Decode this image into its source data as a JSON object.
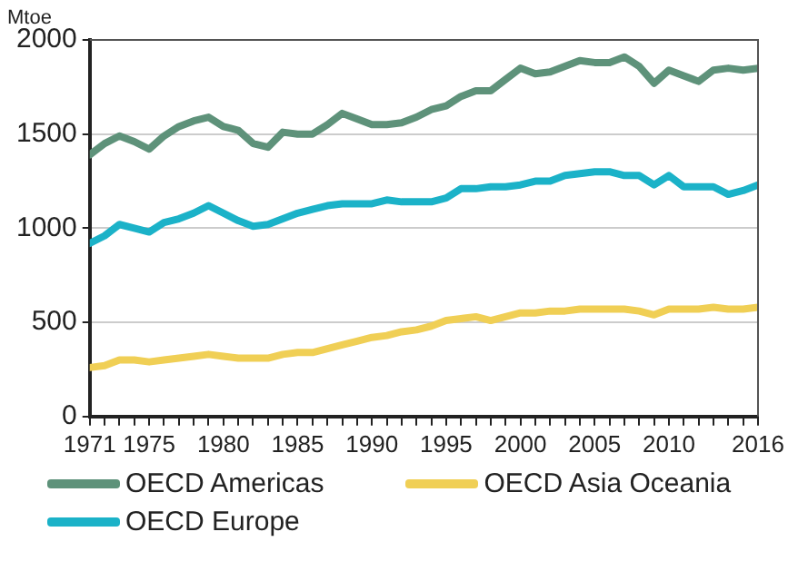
{
  "chart_data": {
    "type": "line",
    "ylabel": "Mtoe",
    "x": [
      1971,
      1972,
      1973,
      1974,
      1975,
      1976,
      1977,
      1978,
      1979,
      1980,
      1981,
      1982,
      1983,
      1984,
      1985,
      1986,
      1987,
      1988,
      1989,
      1990,
      1991,
      1992,
      1993,
      1994,
      1995,
      1996,
      1997,
      1998,
      1999,
      2000,
      2001,
      2002,
      2003,
      2004,
      2005,
      2006,
      2007,
      2008,
      2009,
      2010,
      2011,
      2012,
      2013,
      2014,
      2015,
      2016
    ],
    "series": [
      {
        "name": "OECD Americas",
        "color": "#5e927a",
        "values": [
          1390,
          1450,
          1490,
          1460,
          1420,
          1490,
          1540,
          1570,
          1590,
          1540,
          1520,
          1450,
          1430,
          1510,
          1500,
          1500,
          1550,
          1610,
          1580,
          1550,
          1550,
          1560,
          1590,
          1630,
          1650,
          1700,
          1730,
          1730,
          1790,
          1850,
          1820,
          1830,
          1860,
          1890,
          1880,
          1880,
          1910,
          1860,
          1770,
          1840,
          1810,
          1780,
          1840,
          1850,
          1840,
          1850
        ]
      },
      {
        "name": "OECD Europe",
        "color": "#1bb2c8",
        "values": [
          920,
          960,
          1020,
          1000,
          980,
          1030,
          1050,
          1080,
          1120,
          1080,
          1040,
          1010,
          1020,
          1050,
          1080,
          1100,
          1120,
          1130,
          1130,
          1130,
          1150,
          1140,
          1140,
          1140,
          1160,
          1210,
          1210,
          1220,
          1220,
          1230,
          1250,
          1250,
          1280,
          1290,
          1300,
          1300,
          1280,
          1280,
          1230,
          1280,
          1220,
          1220,
          1220,
          1180,
          1200,
          1230
        ]
      },
      {
        "name": "OECD Asia Oceania",
        "color": "#f0cf55",
        "values": [
          260,
          270,
          300,
          300,
          290,
          300,
          310,
          320,
          330,
          320,
          310,
          310,
          310,
          330,
          340,
          340,
          360,
          380,
          400,
          420,
          430,
          450,
          460,
          480,
          510,
          520,
          530,
          510,
          530,
          550,
          550,
          560,
          560,
          570,
          570,
          570,
          570,
          560,
          540,
          570,
          570,
          570,
          580,
          570,
          570,
          580
        ]
      }
    ],
    "xlim": [
      1971,
      2016
    ],
    "xticks": [
      1971,
      1975,
      {
        "value": 1972,
        "label": null
      },
      {
        "value": 1973,
        "label": null
      },
      {
        "value": 1974,
        "label": null
      },
      1980,
      {
        "value": 1976,
        "label": null
      },
      {
        "value": 1977,
        "label": null
      },
      {
        "value": 1978,
        "label": null
      },
      {
        "value": 1979,
        "label": null
      },
      1985,
      {
        "value": 1981,
        "label": null
      },
      {
        "value": 1982,
        "label": null
      },
      {
        "value": 1983,
        "label": null
      },
      {
        "value": 1984,
        "label": null
      },
      1990,
      {
        "value": 1986,
        "label": null
      },
      {
        "value": 1987,
        "label": null
      },
      {
        "value": 1988,
        "label": null
      },
      {
        "value": 1989,
        "label": null
      },
      1995,
      {
        "value": 1991,
        "label": null
      },
      {
        "value": 1992,
        "label": null
      },
      {
        "value": 1993,
        "label": null
      },
      {
        "value": 1994,
        "label": null
      },
      2000,
      {
        "value": 1996,
        "label": null
      },
      {
        "value": 1997,
        "label": null
      },
      {
        "value": 1998,
        "label": null
      },
      {
        "value": 1999,
        "label": null
      },
      2005,
      {
        "value": 2001,
        "label": null
      },
      {
        "value": 2002,
        "label": null
      },
      {
        "value": 2003,
        "label": null
      },
      {
        "value": 2004,
        "label": null
      },
      2010,
      {
        "value": 2006,
        "label": null
      },
      {
        "value": 2007,
        "label": null
      },
      {
        "value": 2008,
        "label": null
      },
      {
        "value": 2009,
        "label": null
      },
      2016,
      {
        "value": 2011,
        "label": null
      },
      {
        "value": 2012,
        "label": null
      },
      {
        "value": 2013,
        "label": null
      },
      {
        "value": 2014,
        "label": null
      },
      {
        "value": 2015,
        "label": null
      }
    ],
    "ylim": [
      0,
      2000
    ],
    "yticks": [
      0,
      500,
      1000,
      1500,
      2000
    ],
    "grid": "y",
    "legend": "bottom",
    "marker": "none",
    "line_style": "solid"
  }
}
